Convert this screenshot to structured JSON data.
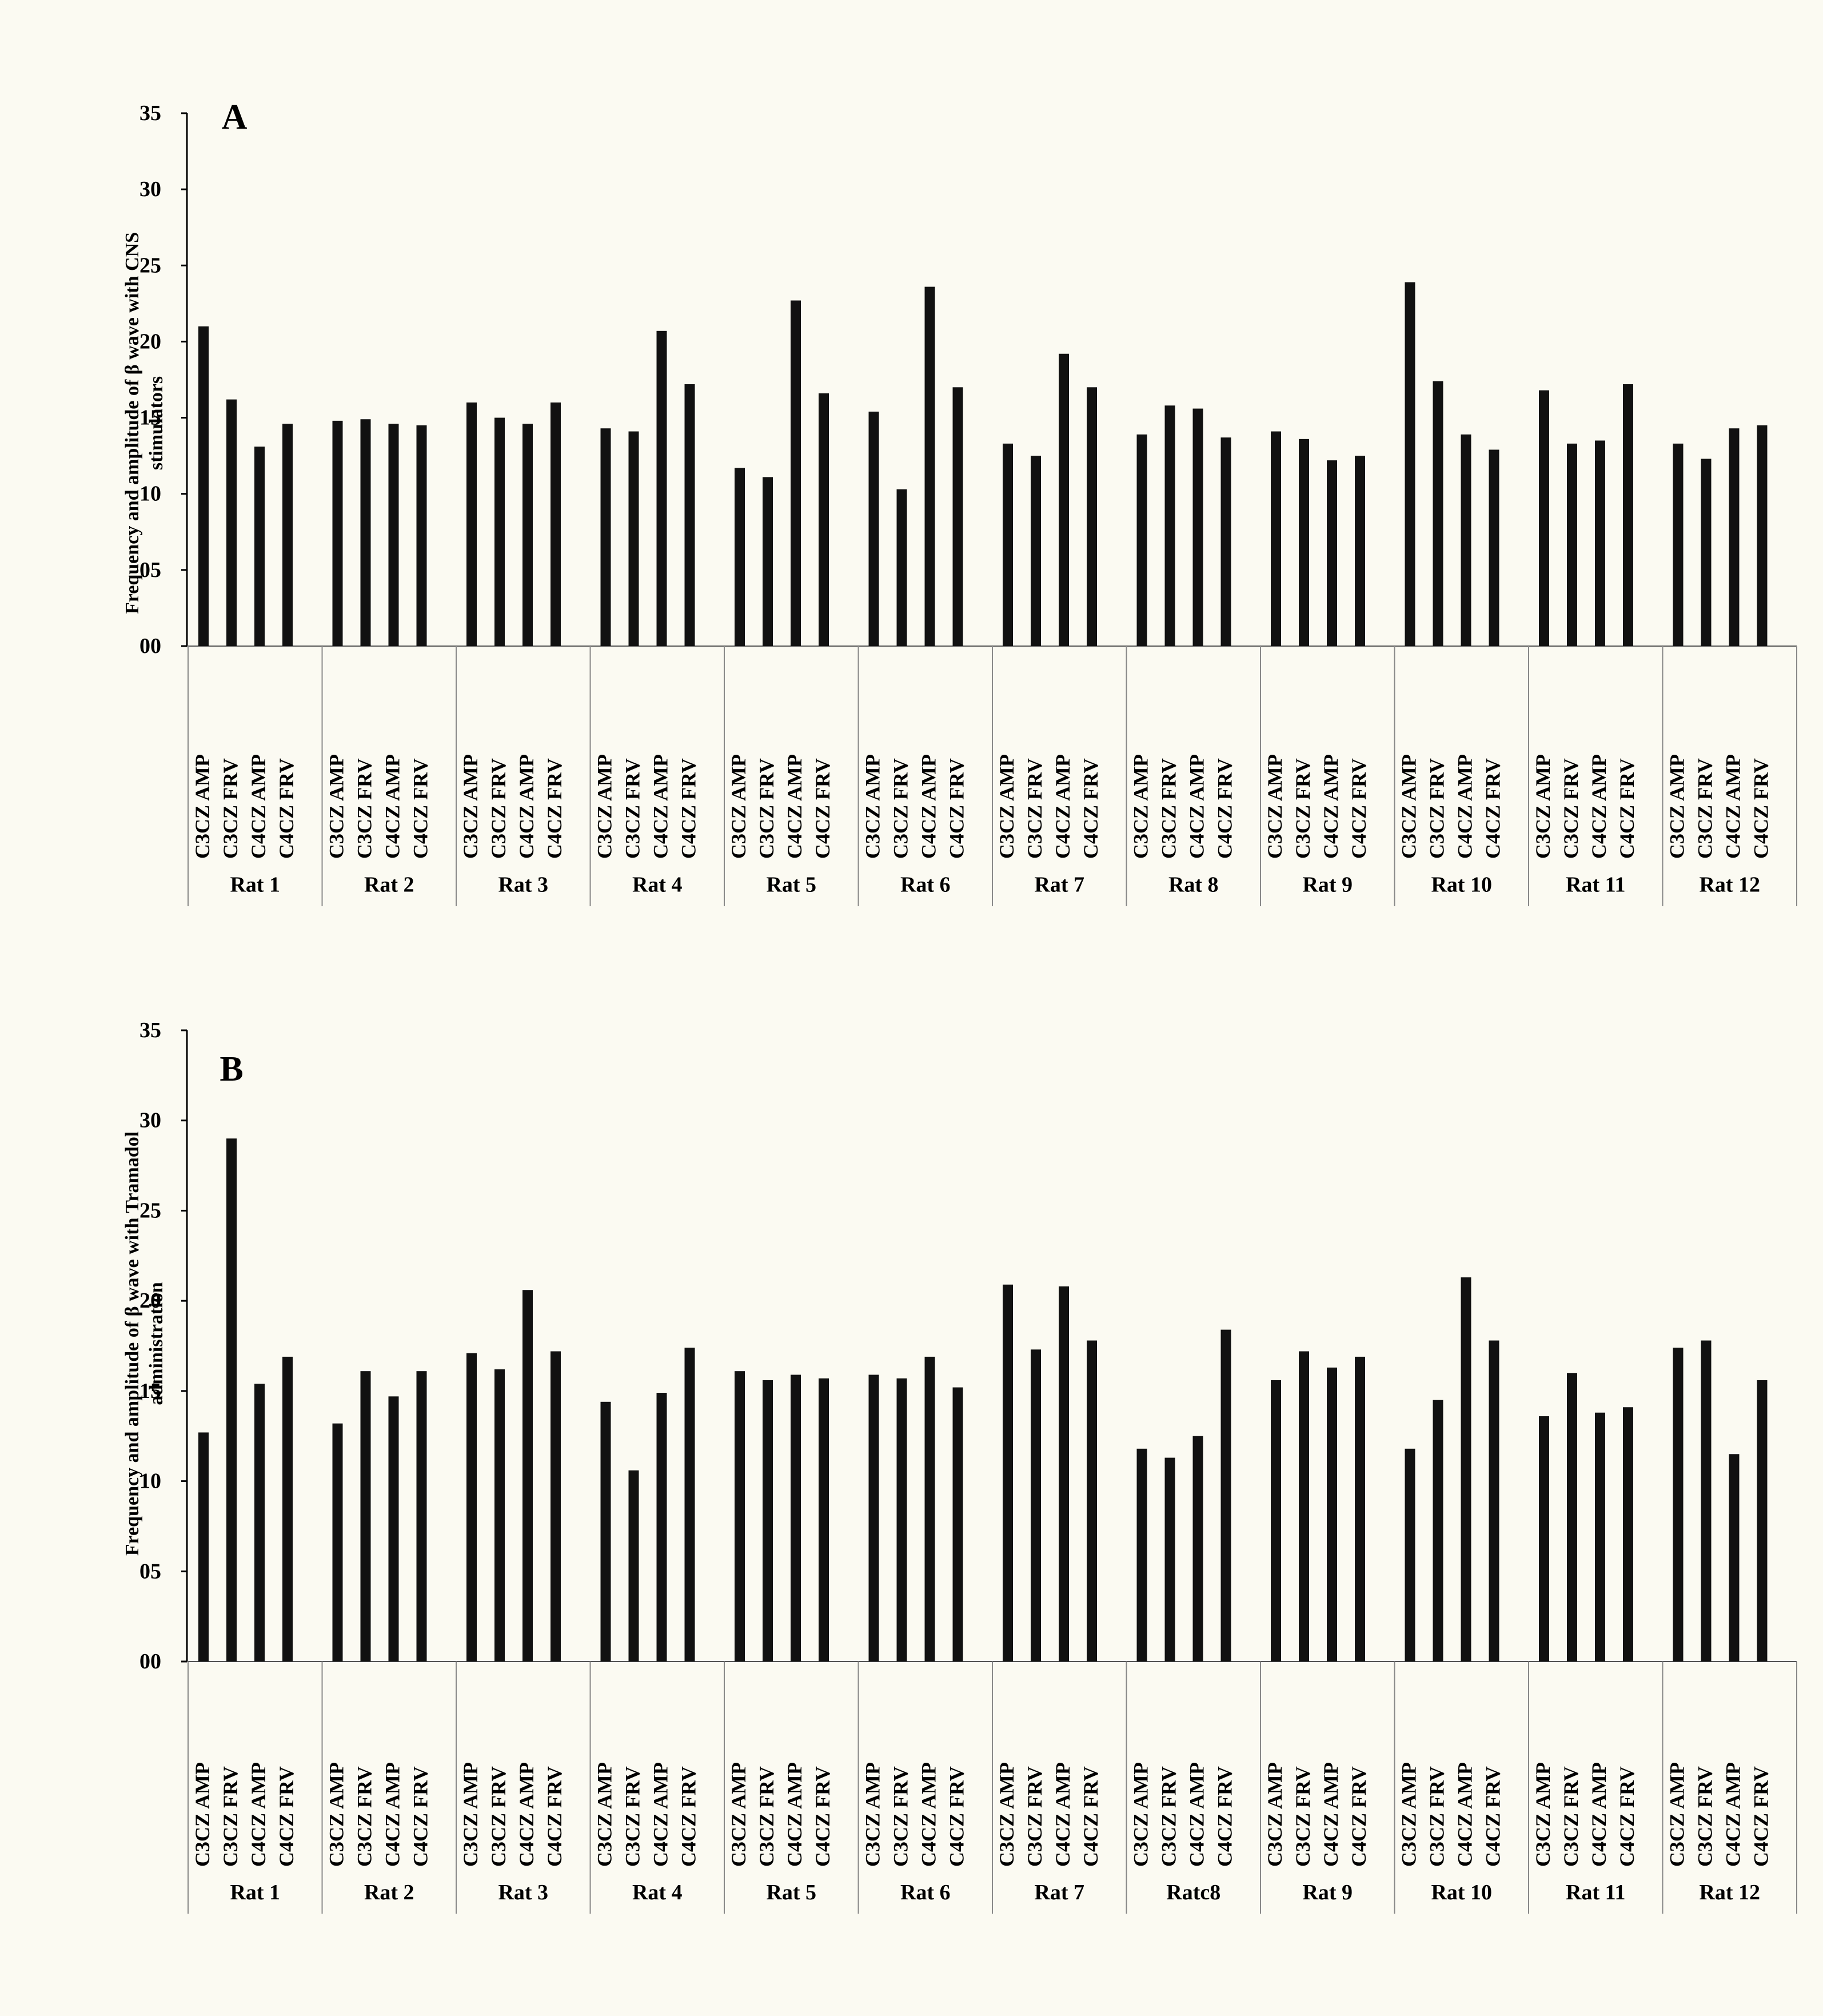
{
  "chart_data": [
    {
      "type": "bar",
      "panel_label": "A",
      "ylabel": "Frequency and amplitude of β wave with CNS stimulators",
      "ylim": [
        0,
        35
      ],
      "yticks": [
        "00",
        "05",
        "10",
        "15",
        "20",
        "25",
        "30",
        "35"
      ],
      "bar_labels": [
        "C3CZ AMP",
        "C3CZ FRV",
        "C4CZ AMP",
        "C4CZ FRV"
      ],
      "groups": [
        "Rat 1",
        "Rat 2",
        "Rat 3",
        "Rat 4",
        "Rat 5",
        "Rat 6",
        "Rat 7",
        "Rat 8",
        "Rat 9",
        "Rat 10",
        "Rat 11",
        "Rat 12"
      ],
      "values": [
        [
          21.0,
          16.2,
          13.1,
          14.6
        ],
        [
          14.8,
          14.9,
          14.6,
          14.5
        ],
        [
          16.0,
          15.0,
          14.6,
          16.0
        ],
        [
          14.3,
          14.1,
          20.7,
          17.2
        ],
        [
          11.7,
          11.1,
          22.7,
          16.6
        ],
        [
          15.4,
          10.3,
          23.6,
          17.0
        ],
        [
          13.3,
          12.5,
          19.2,
          17.0
        ],
        [
          13.9,
          15.8,
          15.6,
          13.7
        ],
        [
          14.1,
          13.6,
          12.2,
          12.5
        ],
        [
          23.9,
          17.4,
          13.9,
          12.9
        ],
        [
          16.8,
          13.3,
          13.5,
          17.2
        ],
        [
          13.3,
          12.3,
          14.3,
          14.5
        ]
      ],
      "grid": false,
      "legend": "none"
    },
    {
      "type": "bar",
      "panel_label": "B",
      "ylabel": "Frequency and amplitude of β wave with Tramadol administration",
      "ylim": [
        0,
        35
      ],
      "yticks": [
        "00",
        "05",
        "10",
        "15",
        "20",
        "25",
        "30",
        "35"
      ],
      "bar_labels": [
        "C3CZ AMP",
        "C3CZ FRV",
        "C4CZ AMP",
        "C4CZ FRV"
      ],
      "groups": [
        "Rat 1",
        "Rat 2",
        "Rat 3",
        "Rat 4",
        "Rat 5",
        "Rat 6",
        "Rat 7",
        "Ratc8",
        "Rat 9",
        "Rat 10",
        "Rat 11",
        "Rat 12"
      ],
      "values": [
        [
          12.7,
          29.0,
          15.4,
          16.9
        ],
        [
          13.2,
          16.1,
          14.7,
          16.1
        ],
        [
          17.1,
          16.2,
          20.6,
          17.2
        ],
        [
          14.4,
          10.6,
          14.9,
          17.4
        ],
        [
          16.1,
          15.6,
          15.9,
          15.7
        ],
        [
          15.9,
          15.7,
          16.9,
          15.2
        ],
        [
          20.9,
          17.3,
          20.8,
          17.8
        ],
        [
          11.8,
          11.3,
          12.5,
          18.4
        ],
        [
          15.6,
          17.2,
          16.3,
          16.9
        ],
        [
          11.8,
          14.5,
          21.3,
          17.8
        ],
        [
          13.6,
          16.0,
          13.8,
          14.1
        ],
        [
          17.4,
          17.8,
          11.5,
          15.6
        ]
      ],
      "grid": false,
      "legend": "none"
    }
  ]
}
